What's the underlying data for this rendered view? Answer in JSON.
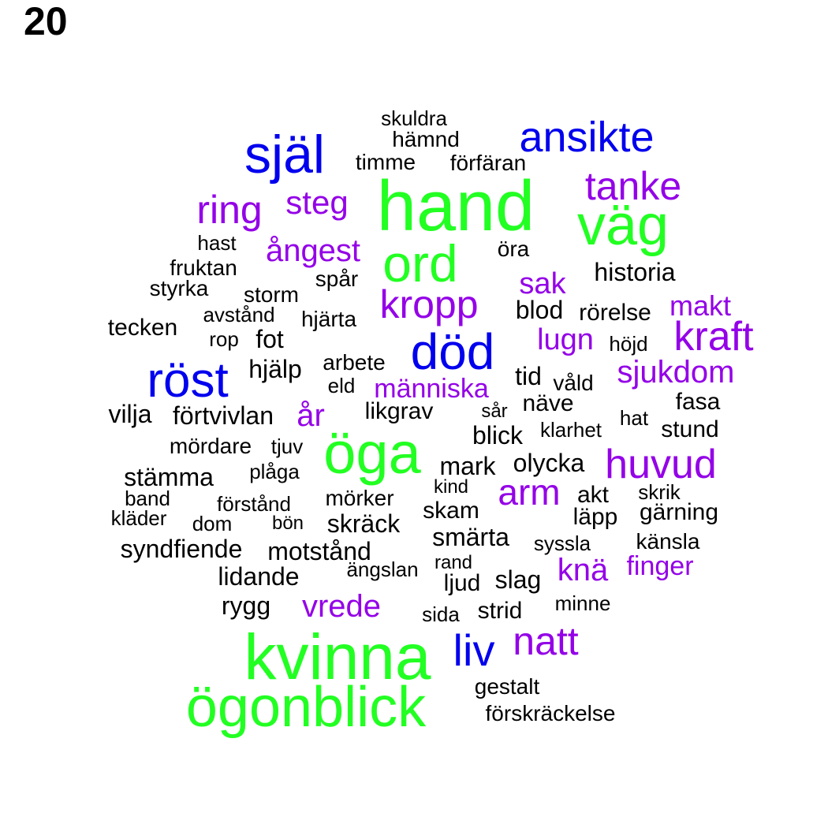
{
  "panel_number": "20",
  "colors": {
    "tier_largest": "#22ff22",
    "tier_large": "#0000ee",
    "tier_medium": "#9400e8",
    "tier_small": "#000000"
  },
  "words": [
    {
      "text": "hand",
      "tier": "tier_largest"
    },
    {
      "text": "kvinna",
      "tier": "tier_largest"
    },
    {
      "text": "ögonblick",
      "tier": "tier_largest"
    },
    {
      "text": "öga",
      "tier": "tier_largest"
    },
    {
      "text": "väg",
      "tier": "tier_largest"
    },
    {
      "text": "ord",
      "tier": "tier_largest"
    },
    {
      "text": "själ",
      "tier": "tier_large"
    },
    {
      "text": "röst",
      "tier": "tier_large"
    },
    {
      "text": "död",
      "tier": "tier_large"
    },
    {
      "text": "ansikte",
      "tier": "tier_large"
    },
    {
      "text": "liv",
      "tier": "tier_large"
    },
    {
      "text": "tanke",
      "tier": "tier_medium"
    },
    {
      "text": "ring",
      "tier": "tier_medium"
    },
    {
      "text": "steg",
      "tier": "tier_medium"
    },
    {
      "text": "ångest",
      "tier": "tier_medium"
    },
    {
      "text": "kropp",
      "tier": "tier_medium"
    },
    {
      "text": "sak",
      "tier": "tier_medium"
    },
    {
      "text": "makt",
      "tier": "tier_medium"
    },
    {
      "text": "kraft",
      "tier": "tier_medium"
    },
    {
      "text": "lugn",
      "tier": "tier_medium"
    },
    {
      "text": "sjukdom",
      "tier": "tier_medium"
    },
    {
      "text": "människa",
      "tier": "tier_medium"
    },
    {
      "text": "år",
      "tier": "tier_medium"
    },
    {
      "text": "huvud",
      "tier": "tier_medium"
    },
    {
      "text": "arm",
      "tier": "tier_medium"
    },
    {
      "text": "knä",
      "tier": "tier_medium"
    },
    {
      "text": "finger",
      "tier": "tier_medium"
    },
    {
      "text": "vrede",
      "tier": "tier_medium"
    },
    {
      "text": "natt",
      "tier": "tier_medium"
    },
    {
      "text": "skuldra",
      "tier": "tier_small"
    },
    {
      "text": "hämnd",
      "tier": "tier_small"
    },
    {
      "text": "timme",
      "tier": "tier_small"
    },
    {
      "text": "förfäran",
      "tier": "tier_small"
    },
    {
      "text": "hast",
      "tier": "tier_small"
    },
    {
      "text": "öra",
      "tier": "tier_small"
    },
    {
      "text": "fruktan",
      "tier": "tier_small"
    },
    {
      "text": "historia",
      "tier": "tier_small"
    },
    {
      "text": "styrka",
      "tier": "tier_small"
    },
    {
      "text": "spår",
      "tier": "tier_small"
    },
    {
      "text": "storm",
      "tier": "tier_small"
    },
    {
      "text": "blod",
      "tier": "tier_small"
    },
    {
      "text": "rörelse",
      "tier": "tier_small"
    },
    {
      "text": "avstånd",
      "tier": "tier_small"
    },
    {
      "text": "tecken",
      "tier": "tier_small"
    },
    {
      "text": "hjärta",
      "tier": "tier_small"
    },
    {
      "text": "rop",
      "tier": "tier_small"
    },
    {
      "text": "fot",
      "tier": "tier_small"
    },
    {
      "text": "höjd",
      "tier": "tier_small"
    },
    {
      "text": "arbete",
      "tier": "tier_small"
    },
    {
      "text": "hjälp",
      "tier": "tier_small"
    },
    {
      "text": "tid",
      "tier": "tier_small"
    },
    {
      "text": "eld",
      "tier": "tier_small"
    },
    {
      "text": "våld",
      "tier": "tier_small"
    },
    {
      "text": "fasa",
      "tier": "tier_small"
    },
    {
      "text": "vilja",
      "tier": "tier_small"
    },
    {
      "text": "förtvivlan",
      "tier": "tier_small"
    },
    {
      "text": "likgrav",
      "tier": "tier_small"
    },
    {
      "text": "sår",
      "tier": "tier_small"
    },
    {
      "text": "näve",
      "tier": "tier_small"
    },
    {
      "text": "hat",
      "tier": "tier_small"
    },
    {
      "text": "stund",
      "tier": "tier_small"
    },
    {
      "text": "blick",
      "tier": "tier_small"
    },
    {
      "text": "klarhet",
      "tier": "tier_small"
    },
    {
      "text": "mördare",
      "tier": "tier_small"
    },
    {
      "text": "tjuv",
      "tier": "tier_small"
    },
    {
      "text": "plåga",
      "tier": "tier_small"
    },
    {
      "text": "mark",
      "tier": "tier_small"
    },
    {
      "text": "olycka",
      "tier": "tier_small"
    },
    {
      "text": "stämma",
      "tier": "tier_small"
    },
    {
      "text": "kind",
      "tier": "tier_small"
    },
    {
      "text": "band",
      "tier": "tier_small"
    },
    {
      "text": "förstånd",
      "tier": "tier_small"
    },
    {
      "text": "mörker",
      "tier": "tier_small"
    },
    {
      "text": "akt",
      "tier": "tier_small"
    },
    {
      "text": "skrik",
      "tier": "tier_small"
    },
    {
      "text": "kläder",
      "tier": "tier_small"
    },
    {
      "text": "dom",
      "tier": "tier_small"
    },
    {
      "text": "bön",
      "tier": "tier_small"
    },
    {
      "text": "skam",
      "tier": "tier_small"
    },
    {
      "text": "läpp",
      "tier": "tier_small"
    },
    {
      "text": "gärning",
      "tier": "tier_small"
    },
    {
      "text": "skräck",
      "tier": "tier_small"
    },
    {
      "text": "smärta",
      "tier": "tier_small"
    },
    {
      "text": "syndfiende",
      "tier": "tier_small"
    },
    {
      "text": "motstånd",
      "tier": "tier_small"
    },
    {
      "text": "syssla",
      "tier": "tier_small"
    },
    {
      "text": "känsla",
      "tier": "tier_small"
    },
    {
      "text": "rand",
      "tier": "tier_small"
    },
    {
      "text": "lidande",
      "tier": "tier_small"
    },
    {
      "text": "ängslan",
      "tier": "tier_small"
    },
    {
      "text": "ljud",
      "tier": "tier_small"
    },
    {
      "text": "slag",
      "tier": "tier_small"
    },
    {
      "text": "rygg",
      "tier": "tier_small"
    },
    {
      "text": "minne",
      "tier": "tier_small"
    },
    {
      "text": "sida",
      "tier": "tier_small"
    },
    {
      "text": "strid",
      "tier": "tier_small"
    },
    {
      "text": "gestalt",
      "tier": "tier_small"
    },
    {
      "text": "förskräckelse",
      "tier": "tier_small"
    }
  ]
}
